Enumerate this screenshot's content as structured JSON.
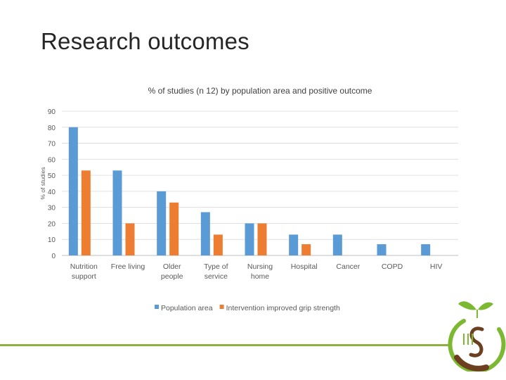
{
  "slide": {
    "title": "Research outcomes"
  },
  "colors": {
    "population_area": "#5b9bd5",
    "intervention": "#ed7d31",
    "rule": "#8db040",
    "logo_green": "#7db832",
    "logo_brown": "#6b3f1f"
  },
  "chart_data": {
    "type": "bar",
    "title": "% of studies (n 12) by population area and positive outcome",
    "xlabel": "",
    "ylabel": "% of studies",
    "ylim": [
      0,
      90
    ],
    "yticks": [
      0,
      10,
      20,
      30,
      40,
      50,
      60,
      70,
      80,
      90
    ],
    "grid": true,
    "legend_position": "bottom",
    "categories": [
      [
        "Nutrition",
        "support"
      ],
      [
        "Free living"
      ],
      [
        "Older",
        "people"
      ],
      [
        "Type of",
        "service"
      ],
      [
        "Nursing",
        "home"
      ],
      [
        "Hospital"
      ],
      [
        "Cancer"
      ],
      [
        "COPD"
      ],
      [
        "HIV"
      ]
    ],
    "series": [
      {
        "name": "Population area",
        "color": "#5b9bd5",
        "values": [
          80,
          53,
          40,
          27,
          20,
          13,
          13,
          7,
          7
        ]
      },
      {
        "name": "Intervention improved grip strength",
        "color": "#ed7d31",
        "values": [
          53,
          20,
          33,
          13,
          20,
          7,
          0,
          0,
          0
        ]
      }
    ]
  }
}
